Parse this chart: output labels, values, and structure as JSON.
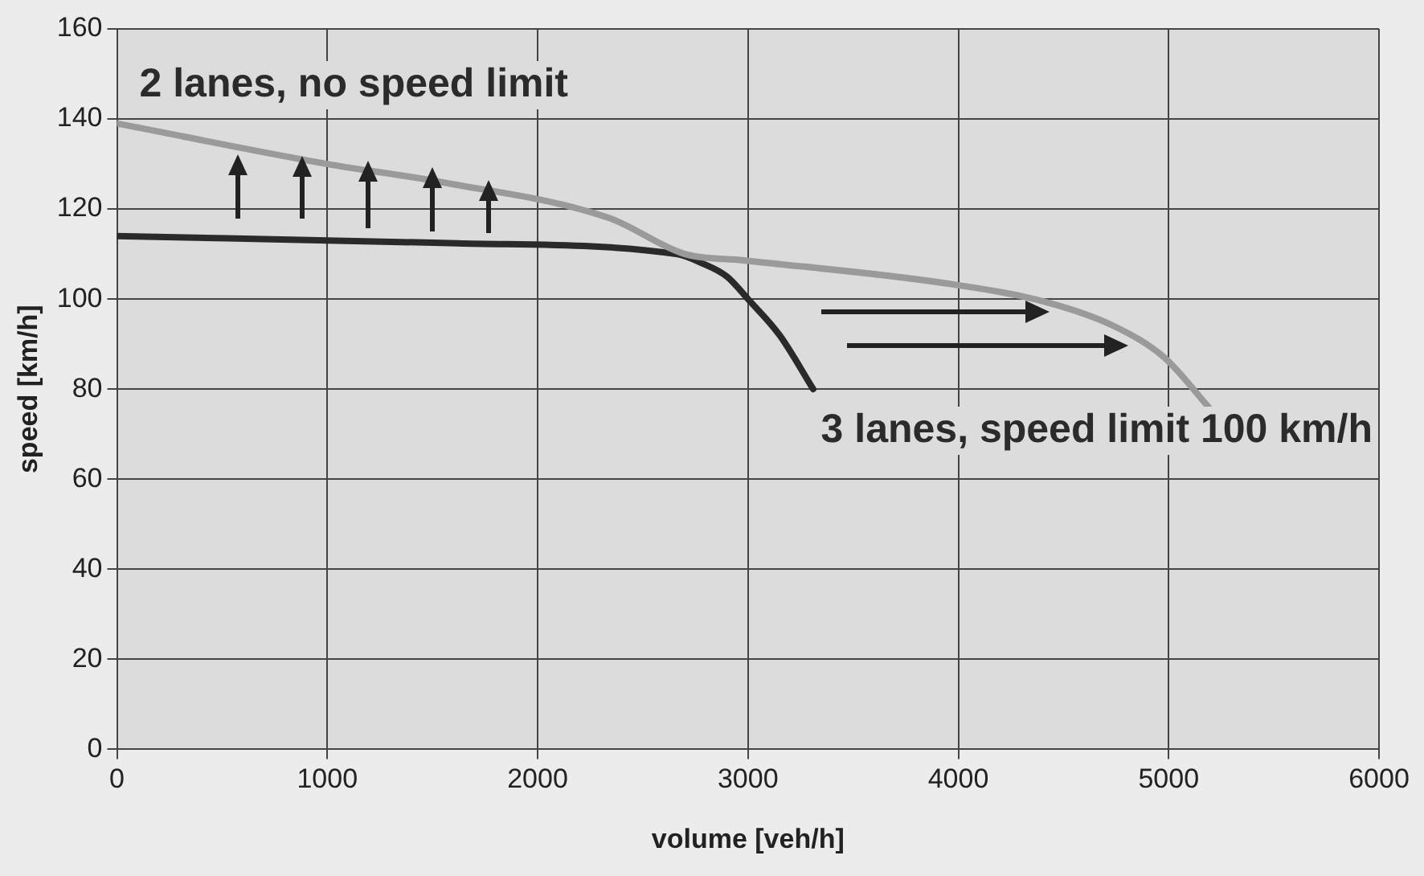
{
  "chart_data": {
    "type": "line",
    "xlabel": "volume [veh/h]",
    "ylabel": "speed [km/h]",
    "xlim": [
      0,
      6000
    ],
    "xticks": [
      0,
      1000,
      2000,
      3000,
      4000,
      5000,
      6000
    ],
    "ylim": [
      0,
      160
    ],
    "yticks": [
      0,
      20,
      40,
      60,
      80,
      100,
      120,
      140,
      160
    ],
    "grid": true,
    "marker": "none",
    "line_style": "solid",
    "series": [
      {
        "color": "#9a9a9a",
        "x": [
          0,
          1000,
          1540,
          2340,
          2700,
          2980,
          3940,
          4420,
          4740,
          4980,
          5190
        ],
        "values": [
          139,
          130,
          126,
          118,
          110,
          108.6,
          103.5,
          99.3,
          94,
          87,
          76
        ]
      },
      {
        "color": "#2a2a2a",
        "x": [
          0,
          1620,
          2660,
          2780,
          2900,
          3000,
          3150,
          3310
        ],
        "values": [
          114,
          112.4,
          110,
          108,
          105,
          100,
          92,
          80
        ]
      }
    ],
    "annotations": [
      "2 lanes, no speed limit",
      "3 lanes, speed limit 100 km/h"
    ]
  }
}
